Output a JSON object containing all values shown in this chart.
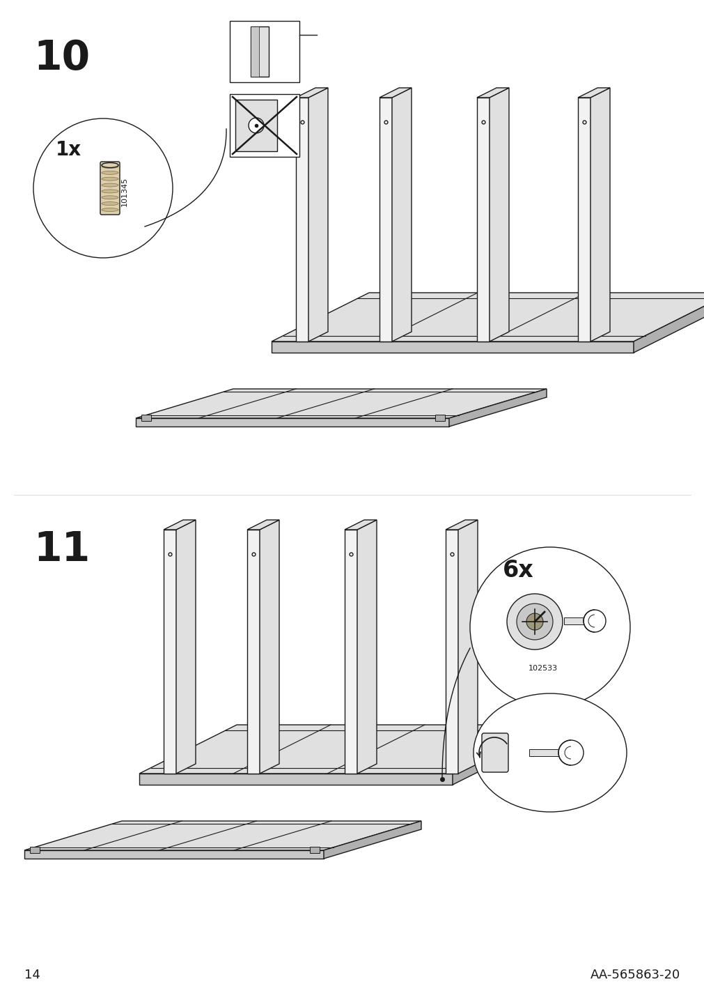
{
  "page_number": "14",
  "doc_id": "AA-565863-20",
  "step10_label": "10",
  "step11_label": "11",
  "part1_code": "101345",
  "part2_code": "102533",
  "part1_qty": "1x",
  "part2_qty": "6x",
  "bg_color": "#ffffff",
  "line_color": "#1a1a1a",
  "lw_main": 1.0,
  "lw_thick": 1.8,
  "step_label_fontsize": 42,
  "qty_fontsize": 20,
  "page_fontsize": 13,
  "part_code_fontsize": 8,
  "face_light": "#f2f2f2",
  "face_mid": "#e0e0e0",
  "face_dark": "#c8c8c8",
  "face_darker": "#b0b0b0"
}
